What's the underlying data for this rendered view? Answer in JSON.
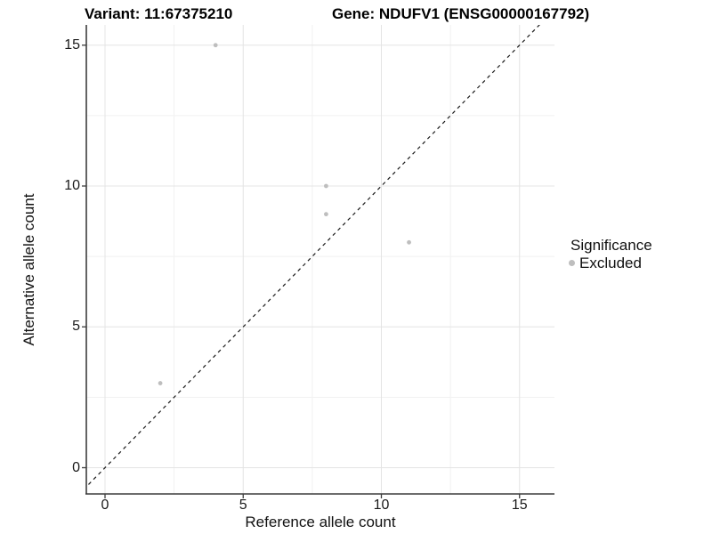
{
  "chart_data": {
    "type": "scatter",
    "titles": {
      "left": "Variant: 11:67375210",
      "right": "Gene: NDUFV1 (ENSG00000167792)"
    },
    "xlabel": "Reference allele count",
    "ylabel": "Alternative allele count",
    "x_ticks": [
      0,
      5,
      10,
      15
    ],
    "y_ticks": [
      0,
      5,
      10,
      15
    ],
    "x_minor_ticks": [
      2.5,
      7.5,
      12.5
    ],
    "y_minor_ticks": [
      2.5,
      7.5,
      12.5
    ],
    "xlim": [
      -0.68,
      16.26
    ],
    "ylim": [
      -0.93,
      15.72
    ],
    "grid": "major+minor",
    "series": [
      {
        "name": "Excluded",
        "color": "#bebebe",
        "points": [
          [
            4,
            15
          ],
          [
            8,
            10
          ],
          [
            8,
            9
          ],
          [
            11,
            8
          ],
          [
            2,
            3
          ]
        ]
      }
    ],
    "reference_line": {
      "equation": "y = x",
      "style": "dashed",
      "color": "#1a1a1a"
    },
    "legend": {
      "position": "right",
      "title": "Significance",
      "entries": [
        {
          "label": "Excluded",
          "color": "#bebebe"
        }
      ]
    },
    "colors": {
      "background": "#ffffff",
      "grid_major": "#e4e4e4",
      "grid_minor": "#f1f1f1",
      "axis": "#3d3d3d",
      "point": "#bebebe",
      "text": "#111111"
    }
  }
}
